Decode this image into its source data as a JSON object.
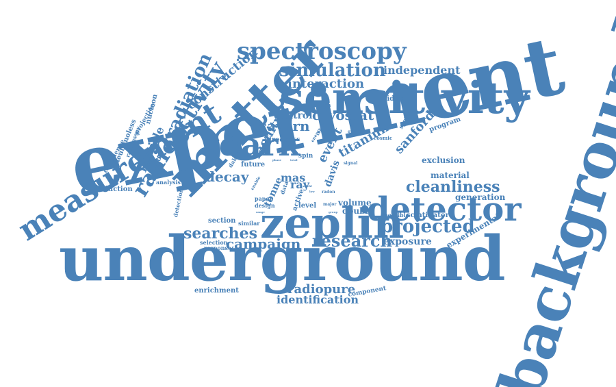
{
  "words": {
    "experiment": "experiment",
    "underground": "underground",
    "background": "background",
    "sensitivity": "sensitivity",
    "matter": "matter",
    "zeplin": "zeplin",
    "detector": "detector",
    "measurement": "measurement",
    "spectroscopy": "spectroscopy",
    "dark": "dark",
    "radioactivity": "radioactivity",
    "simulation": "simulation",
    "projected": "projected",
    "research": "research",
    "cleanliness": "cleanliness",
    "searches": "searches",
    "campaign": "campaign",
    "radiation": "radiation",
    "construction": "construction",
    "interaction": "interaction",
    "independent": "independent",
    "cryostat": "cryostat",
    "control": "control",
    "cavern": "cavern",
    "titanium": "titanium",
    "sanford": "sanford",
    "facility": "facility",
    "event": "event",
    "decay": "decay",
    "particle": "particle",
    "radiopure": "radiopure",
    "identification": "identification",
    "exposure": "exposure",
    "experimental": "experimental",
    "material": "material",
    "generation": "generation",
    "exclusion": "exclusion",
    "scintillator": "scintillator",
    "volume": "volume",
    "double": "double",
    "tonne": "tonne",
    "ray": "ray",
    "mas": "mas",
    "davis": "davis",
    "section": "section",
    "similar": "similar",
    "selection": "selection",
    "response": "response",
    "enrichment": "enrichment",
    "component": "component",
    "production": "production",
    "analysis": "analysis",
    "xenon": "xenon",
    "dakota": "dakota",
    "future": "future",
    "direct": "direct",
    "cross": "cross",
    "spin": "spin",
    "fiducial": "fiducial",
    "program": "program",
    "system": "system",
    "cosmic": "cosmic",
    "possible": "possible",
    "neutron": "neutron",
    "confidence": "confidence",
    "neutrinoless": "neutrinoless",
    "radioassay": "radioassay",
    "projection": "projection",
    "nucleon": "nucleon",
    "detection": "detection",
    "level": "level",
    "active": "active",
    "design": "design",
    "paper": "paper",
    "data": "data",
    "major": "major",
    "radon": "radon",
    "signal": "signal",
    "quality": "quality",
    "energy": "energy",
    "report": "report",
    "enable": "enable",
    "total": "total",
    "phase": "phase",
    "group": "group",
    "lower": "lower",
    "range": "range",
    "used": "used",
    "shield": "shield",
    "low": "low",
    "time": "time"
  },
  "colors": {
    "primary": "#4a82b8",
    "background": "#ffffff"
  }
}
